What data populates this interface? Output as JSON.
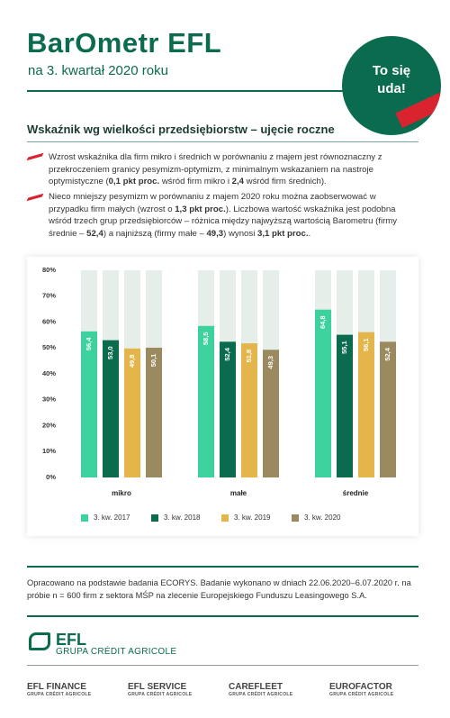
{
  "header": {
    "title": "BarOmetr EFL",
    "subtitle": "na 3. kwartał 2020 roku",
    "badge": [
      "To się",
      "uda!"
    ]
  },
  "section_title": "Wskaźnik wg wielkości przedsiębiorstw – ujęcie roczne",
  "bullets": [
    [
      "Wzrost wskaźnika dla firm mikro i średnich w porównaniu z majem jest równoznaczny z przekroczeniem granicy pesymizm-optymizm, z minimalnym wskazaniem na nastroje optymistyczne (",
      "0,1 pkt proc.",
      " wśród firm mikro i ",
      "2,4",
      " wśród firm średnich)."
    ],
    [
      "Nieco mniejszy pesymizm w porównaniu z majem 2020 roku można zaobserwować w przypadku firm małych (wzrost o ",
      "1,3 pkt proc.",
      "). Liczbowa wartość wskaźnika jest podobna wśród trzech grup przedsiębiorców – różnica między najwyższą wartością Barometru (firmy średnie – ",
      "52,4",
      ") a najniższą (firmy małe – ",
      "49,3",
      ") wynosi ",
      "3,1 pkt proc.",
      "."
    ]
  ],
  "chart_data": {
    "type": "bar",
    "categories": [
      "mikro",
      "małe",
      "średnie"
    ],
    "series": [
      {
        "name": "3. kw. 2017",
        "color": "#3dd29d",
        "values": [
          56.4,
          58.5,
          64.8
        ],
        "value_labels": [
          "56,4",
          "58,5",
          "64,8"
        ]
      },
      {
        "name": "3. kw. 2018",
        "color": "#0b6b4f",
        "values": [
          53.0,
          52.4,
          55.1
        ],
        "value_labels": [
          "53,0",
          "52,4",
          "55,1"
        ]
      },
      {
        "name": "3. kw. 2019",
        "color": "#e3b54b",
        "values": [
          49.8,
          51.8,
          56.1
        ],
        "value_labels": [
          "49,8",
          "51,8",
          "56,1"
        ]
      },
      {
        "name": "3. kw. 2020",
        "color": "#9b8a5f",
        "values": [
          50.1,
          49.3,
          52.4
        ],
        "value_labels": [
          "50,1",
          "49,3",
          "52,4"
        ]
      }
    ],
    "ylim": [
      0,
      80
    ],
    "yticks": [
      {
        "value": 0,
        "label": "0%"
      },
      {
        "value": 10,
        "label": "10%"
      },
      {
        "value": 20,
        "label": "20%"
      },
      {
        "value": 30,
        "label": "30%"
      },
      {
        "value": 40,
        "label": "40%"
      },
      {
        "value": 50,
        "label": "50%"
      },
      {
        "value": 60,
        "label": "60%"
      },
      {
        "value": 70,
        "label": "70%"
      },
      {
        "value": 80,
        "label": "80%"
      }
    ],
    "legend": "bottom"
  },
  "footer": {
    "note": "Opracowano na podstawie badania ECORYS. Badanie wykonano w dniach 22.06.2020–6.07.2020 r. na próbie n = 600 firm z sektora MŚP na zlecenie Europejskiego Funduszu Leasingowego S.A.",
    "logo": {
      "name": "EFL",
      "group": "GRUPA CRÉDIT AGRICOLE"
    },
    "brands": [
      {
        "name": "EFL FINANCE",
        "group": "GRUPA CRÉDIT AGRICOLE"
      },
      {
        "name": "EFL SERVICE",
        "group": "GRUPA CRÉDIT AGRICOLE"
      },
      {
        "name": "CAREFLEET",
        "group": "GRUPA CRÉDIT AGRICOLE"
      },
      {
        "name": "EUROFACTOR",
        "group": "GRUPA CRÉDIT AGRICOLE"
      }
    ]
  }
}
